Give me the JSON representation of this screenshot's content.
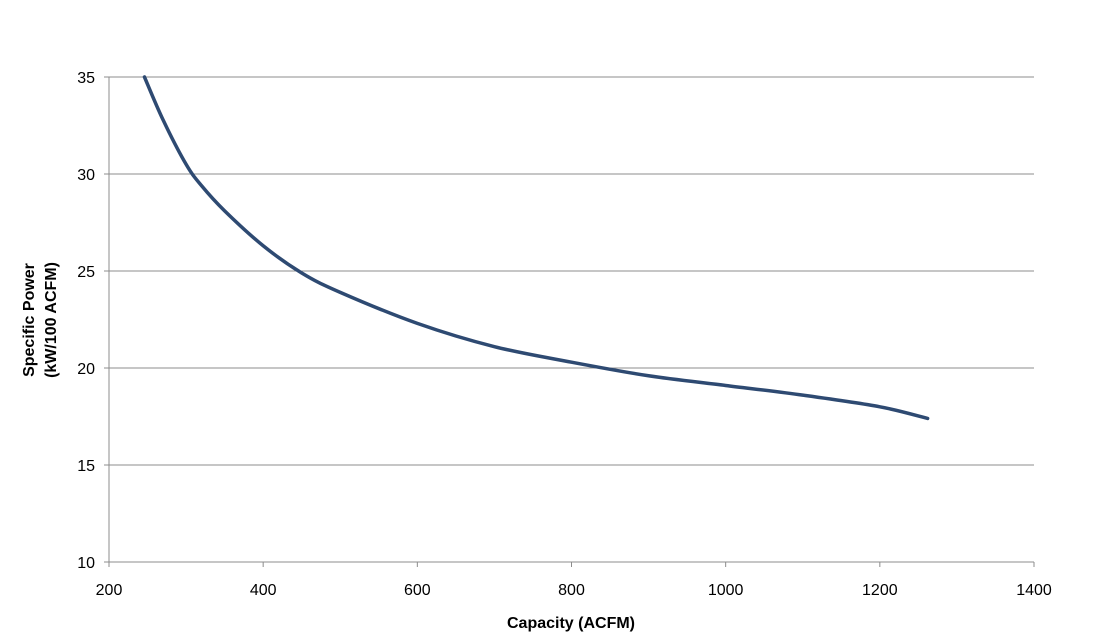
{
  "chart_data": {
    "type": "line",
    "xlabel": "Capacity (ACFM)",
    "ylabel": [
      "Specific Power",
      "(kW/100 ACFM)"
    ],
    "xlim": [
      200,
      1400
    ],
    "ylim": [
      10,
      35
    ],
    "xticks": [
      "200",
      "400",
      "600",
      "800",
      "1000",
      "1200",
      "1400"
    ],
    "yticks": [
      "10",
      "15",
      "20",
      "25",
      "30",
      "35"
    ],
    "grid": "horizontal",
    "legend": "none",
    "series": [
      {
        "color": "#2e4a72",
        "x": [
          246,
          270,
          300,
          320,
          350,
          400,
          450,
          500,
          600,
          700,
          800,
          900,
          1000,
          1100,
          1200,
          1262
        ],
        "y": [
          35,
          32.8,
          30.5,
          29.4,
          28.1,
          26.3,
          24.9,
          23.9,
          22.3,
          21.1,
          20.3,
          19.6,
          19.1,
          18.6,
          18,
          17.4
        ]
      }
    ]
  }
}
